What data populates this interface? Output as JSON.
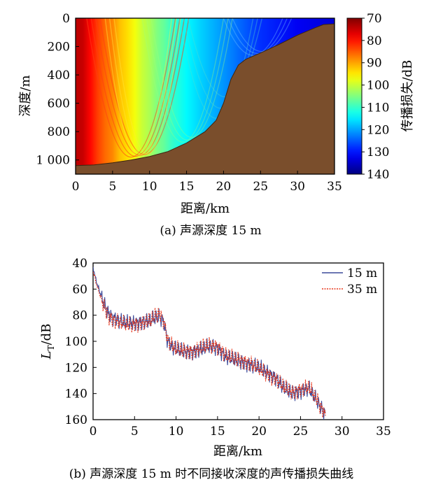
{
  "chart_data": [
    {
      "type": "heatmap",
      "caption": "(a)  声源深度 15 m",
      "xlabel": "距离/km",
      "ylabel": "深度/m",
      "xlim": [
        0,
        35
      ],
      "ylim": [
        1100,
        0
      ],
      "x_ticks": [
        {
          "value": 0,
          "label": "0"
        },
        {
          "value": 5,
          "label": "5"
        },
        {
          "value": 10,
          "label": "10"
        },
        {
          "value": 15,
          "label": "15"
        },
        {
          "value": 20,
          "label": "20"
        },
        {
          "value": 25,
          "label": "25"
        },
        {
          "value": 30,
          "label": "30"
        },
        {
          "value": 35,
          "label": "35"
        }
      ],
      "y_ticks": [
        {
          "value": 0,
          "label": "0"
        },
        {
          "value": 200,
          "label": "200"
        },
        {
          "value": 400,
          "label": "400"
        },
        {
          "value": 600,
          "label": "600"
        },
        {
          "value": 800,
          "label": "800"
        },
        {
          "value": 1000,
          "label": "1 000"
        }
      ],
      "colorbar": {
        "label": "传播损失/dB",
        "range": [
          70,
          140
        ],
        "ticks": [
          {
            "value": 70,
            "label": "70"
          },
          {
            "value": 80,
            "label": "80"
          },
          {
            "value": 90,
            "label": "90"
          },
          {
            "value": 100,
            "label": "100"
          },
          {
            "value": 110,
            "label": "110"
          },
          {
            "value": 120,
            "label": "120"
          },
          {
            "value": 130,
            "label": "130"
          },
          {
            "value": 140,
            "label": "140"
          }
        ]
      },
      "seabed_color": "#7a4e2c",
      "bathymetry": {
        "range_km": [
          0,
          2.5,
          5,
          7.5,
          10,
          12.5,
          15,
          17.5,
          19,
          20,
          21,
          22,
          23,
          25,
          27.5,
          30,
          32.5,
          33.5,
          35
        ],
        "depth_m": [
          1040,
          1035,
          1020,
          1000,
          975,
          940,
          880,
          800,
          720,
          600,
          430,
          330,
          290,
          245,
          185,
          120,
          65,
          45,
          40
        ]
      },
      "loss_profile": {
        "range_km": [
          0,
          1,
          2,
          3,
          4,
          5,
          6,
          7,
          8,
          9,
          10,
          11,
          12,
          13,
          15,
          17,
          20,
          25,
          30,
          35
        ],
        "loss_db": [
          74,
          75,
          79,
          83,
          86,
          88,
          92,
          94,
          97,
          100,
          102,
          105,
          107,
          110,
          114,
          117,
          121,
          128,
          132,
          134
        ]
      }
    },
    {
      "type": "line",
      "caption": "(b)  声源深度 15 m 时不同接收深度的声传播损失曲线",
      "xlabel": "距离/km",
      "ylabel_main": "L",
      "ylabel_sub": "T",
      "ylabel_unit": "/dB",
      "xlim": [
        0,
        35
      ],
      "ylim": [
        160,
        40
      ],
      "x_ticks": [
        {
          "value": 0,
          "label": "0"
        },
        {
          "value": 5,
          "label": "5"
        },
        {
          "value": 10,
          "label": "10"
        },
        {
          "value": 15,
          "label": "15"
        },
        {
          "value": 20,
          "label": "20"
        },
        {
          "value": 25,
          "label": "25"
        },
        {
          "value": 30,
          "label": "30"
        },
        {
          "value": 35,
          "label": "35"
        }
      ],
      "y_ticks": [
        {
          "value": 40,
          "label": "40"
        },
        {
          "value": 60,
          "label": "60"
        },
        {
          "value": 80,
          "label": "80"
        },
        {
          "value": 100,
          "label": "100"
        },
        {
          "value": 120,
          "label": "120"
        },
        {
          "value": 140,
          "label": "140"
        },
        {
          "value": 160,
          "label": "160"
        }
      ],
      "legend_position": "top-right",
      "series": [
        {
          "name": "15 m",
          "color": "#3b4a9a",
          "style": "solid",
          "x": [
            0,
            0.3,
            0.6,
            1,
            1.5,
            2,
            2.5,
            3,
            4,
            5,
            6,
            7,
            7.5,
            8,
            8.5,
            9,
            9.5,
            10,
            11,
            12,
            13,
            14,
            15,
            16,
            17,
            18,
            19,
            20,
            21,
            22,
            23,
            24,
            25,
            26,
            27,
            28
          ],
          "y": [
            43,
            52,
            58,
            66,
            74,
            80,
            82,
            84,
            86,
            86,
            85,
            84,
            82,
            81,
            85,
            100,
            104,
            106,
            108,
            108,
            106,
            104,
            105,
            112,
            114,
            116,
            118,
            120,
            124,
            128,
            136,
            140,
            138,
            136,
            146,
            156
          ]
        },
        {
          "name": "35 m",
          "color": "#e8391d",
          "style": "dotted",
          "x": [
            0,
            0.3,
            0.6,
            1,
            1.5,
            2,
            2.5,
            3,
            4,
            5,
            6,
            7,
            7.5,
            8,
            8.5,
            9,
            9.5,
            10,
            11,
            12,
            13,
            14,
            15,
            16,
            17,
            18,
            19,
            20,
            21,
            22,
            23,
            24,
            25,
            26,
            27,
            28
          ],
          "y": [
            46,
            54,
            60,
            68,
            76,
            82,
            84,
            85,
            87,
            87,
            86,
            84,
            80,
            79,
            84,
            99,
            103,
            106,
            107,
            108,
            105,
            103,
            104,
            111,
            113,
            115,
            117,
            121,
            125,
            129,
            135,
            139,
            137,
            135,
            145,
            157
          ]
        }
      ]
    }
  ]
}
